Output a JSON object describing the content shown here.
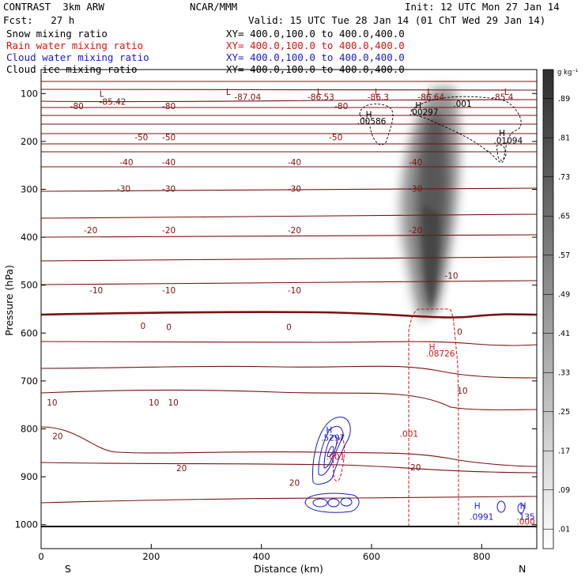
{
  "header": {
    "model": "CONTRAST  3km ARW",
    "org": "NCAR/MMM",
    "init": "Init: 12 UTC Mon 27 Jan 14",
    "fcst": "Fcst:   27 h",
    "valid": "Valid: 15 UTC Tue 28 Jan 14 (01 ChT Wed 29 Jan 14)"
  },
  "fields": [
    {
      "label": "Snow mixing ratio",
      "xy": "XY= 400.0,100.0 to 400.0,400.0",
      "color": "#000000"
    },
    {
      "label": "Rain water mixing ratio",
      "xy": "XY= 400.0,100.0 to 400.0,400.0",
      "color": "#dd1111"
    },
    {
      "label": "Cloud water mixing ratio",
      "xy": "XY= 400.0,100.0 to 400.0,400.0",
      "color": "#1a1acc"
    },
    {
      "label": "Cloud ice mixing ratio",
      "xy": "XY= 400.0,100.0 to 400.0,400.0",
      "color": "#000000"
    }
  ],
  "colors": {
    "temperature": "#7a1010",
    "rain": "#dd1111",
    "cloud_water": "#1a1acc",
    "cloud_ice": "#000000",
    "snow_shade": "#444444"
  },
  "chart_data": {
    "type": "cross-section",
    "xlabel": "Distance (km)",
    "ylabel": "Pressure (hPa)",
    "xlim": [
      0,
      900
    ],
    "ylim": [
      1050,
      50
    ],
    "x_ticks": [
      0,
      200,
      400,
      600,
      800
    ],
    "y_ticks": [
      100,
      200,
      300,
      400,
      500,
      600,
      700,
      800,
      900,
      1000
    ],
    "end_labels": {
      "left": "S",
      "right": "N"
    },
    "colorbar": {
      "unit": "g kg⁻¹",
      "levels": [
        ".01",
        ".09",
        ".17",
        ".25",
        ".33",
        ".41",
        ".49",
        ".57",
        ".65",
        ".73",
        ".81",
        ".89"
      ]
    },
    "temperature_labels": [
      {
        "text": "-85.42",
        "x": 130,
        "p": 117
      },
      {
        "text": "-87.04",
        "x": 375,
        "p": 107
      },
      {
        "text": "-86.53",
        "x": 508,
        "p": 107
      },
      {
        "text": "-86.3",
        "x": 612,
        "p": 107
      },
      {
        "text": "-86.64",
        "x": 708,
        "p": 107
      },
      {
        "text": "-85.4",
        "x": 838,
        "p": 107
      },
      {
        "text": "-80",
        "x": 65,
        "p": 126
      },
      {
        "text": "-80",
        "x": 232,
        "p": 126
      },
      {
        "text": "-80",
        "x": 545,
        "p": 126
      },
      {
        "text": "-50",
        "x": 182,
        "p": 191
      },
      {
        "text": "-50",
        "x": 232,
        "p": 191
      },
      {
        "text": "-50",
        "x": 535,
        "p": 191
      },
      {
        "text": "-40",
        "x": 155,
        "p": 243
      },
      {
        "text": "-40",
        "x": 232,
        "p": 243
      },
      {
        "text": "-40",
        "x": 460,
        "p": 243
      },
      {
        "text": "-40",
        "x": 680,
        "p": 243
      },
      {
        "text": "-30",
        "x": 150,
        "p": 298
      },
      {
        "text": "-30",
        "x": 232,
        "p": 298
      },
      {
        "text": "-30",
        "x": 460,
        "p": 298
      },
      {
        "text": "-30",
        "x": 680,
        "p": 298
      },
      {
        "text": "-20",
        "x": 90,
        "p": 385
      },
      {
        "text": "-20",
        "x": 232,
        "p": 385
      },
      {
        "text": "-20",
        "x": 460,
        "p": 385
      },
      {
        "text": "-20",
        "x": 680,
        "p": 385
      },
      {
        "text": "-10",
        "x": 100,
        "p": 510
      },
      {
        "text": "-10",
        "x": 232,
        "p": 510
      },
      {
        "text": "-10",
        "x": 460,
        "p": 510
      },
      {
        "text": "-10",
        "x": 745,
        "p": 480
      },
      {
        "text": "0",
        "x": 185,
        "p": 585
      },
      {
        "text": "0",
        "x": 232,
        "p": 587
      },
      {
        "text": "0",
        "x": 450,
        "p": 587
      },
      {
        "text": "0",
        "x": 760,
        "p": 597
      },
      {
        "text": "10",
        "x": 20,
        "p": 745
      },
      {
        "text": "10",
        "x": 205,
        "p": 745
      },
      {
        "text": "10",
        "x": 240,
        "p": 745
      },
      {
        "text": "10",
        "x": 765,
        "p": 720
      },
      {
        "text": "20",
        "x": 30,
        "p": 815
      },
      {
        "text": "20",
        "x": 255,
        "p": 882
      },
      {
        "text": "20",
        "x": 460,
        "p": 912
      },
      {
        "text": "20",
        "x": 680,
        "p": 880
      }
    ],
    "extrema_labels": [
      {
        "text": "L",
        "x": 110,
        "p": 100,
        "color": "#7a1010"
      },
      {
        "text": "L",
        "x": 340,
        "p": 96,
        "color": "#7a1010"
      },
      {
        "text": "L",
        "x": 505,
        "p": 96,
        "color": "#7a1010"
      },
      {
        "text": "L",
        "x": 610,
        "p": 96,
        "color": "#7a1010"
      },
      {
        "text": "L",
        "x": 705,
        "p": 96,
        "color": "#7a1010"
      },
      {
        "text": "L",
        "x": 845,
        "p": 96,
        "color": "#7a1010"
      },
      {
        "text": "H",
        "x": 595,
        "p": 143,
        "color": "#000000"
      },
      {
        "text": ".00586",
        "x": 600,
        "p": 157,
        "color": "#000000"
      },
      {
        "text": "H",
        "x": 685,
        "p": 124,
        "color": "#000000"
      },
      {
        "text": ".00297",
        "x": 695,
        "p": 138,
        "color": "#000000"
      },
      {
        "text": ".001",
        "x": 765,
        "p": 121,
        "color": "#000000"
      },
      {
        "text": "H",
        "x": 837,
        "p": 182,
        "color": "#000000"
      },
      {
        "text": ".01094",
        "x": 848,
        "p": 198,
        "color": "#000000"
      },
      {
        "text": "H",
        "x": 710,
        "p": 628,
        "color": "#dd1111"
      },
      {
        "text": ".08726",
        "x": 725,
        "p": 642,
        "color": "#dd1111"
      },
      {
        "text": ".001",
        "x": 668,
        "p": 810,
        "color": "#dd1111"
      },
      {
        "text": "H",
        "x": 523,
        "p": 802,
        "color": "#1a1acc"
      },
      {
        "text": ".5297",
        "x": 530,
        "p": 818,
        "color": "#1a1acc"
      },
      {
        "text": ".001",
        "x": 535,
        "p": 858,
        "color": "#dd1111"
      },
      {
        "text": "H",
        "x": 792,
        "p": 960,
        "color": "#1a1acc"
      },
      {
        "text": ".0991",
        "x": 800,
        "p": 983,
        "color": "#1a1acc"
      },
      {
        "text": "H",
        "x": 875,
        "p": 960,
        "color": "#1a1acc"
      },
      {
        "text": ".135",
        "x": 880,
        "p": 983,
        "color": "#1a1acc"
      },
      {
        "text": ".000",
        "x": 880,
        "p": 993,
        "color": "#dd1111"
      }
    ]
  }
}
